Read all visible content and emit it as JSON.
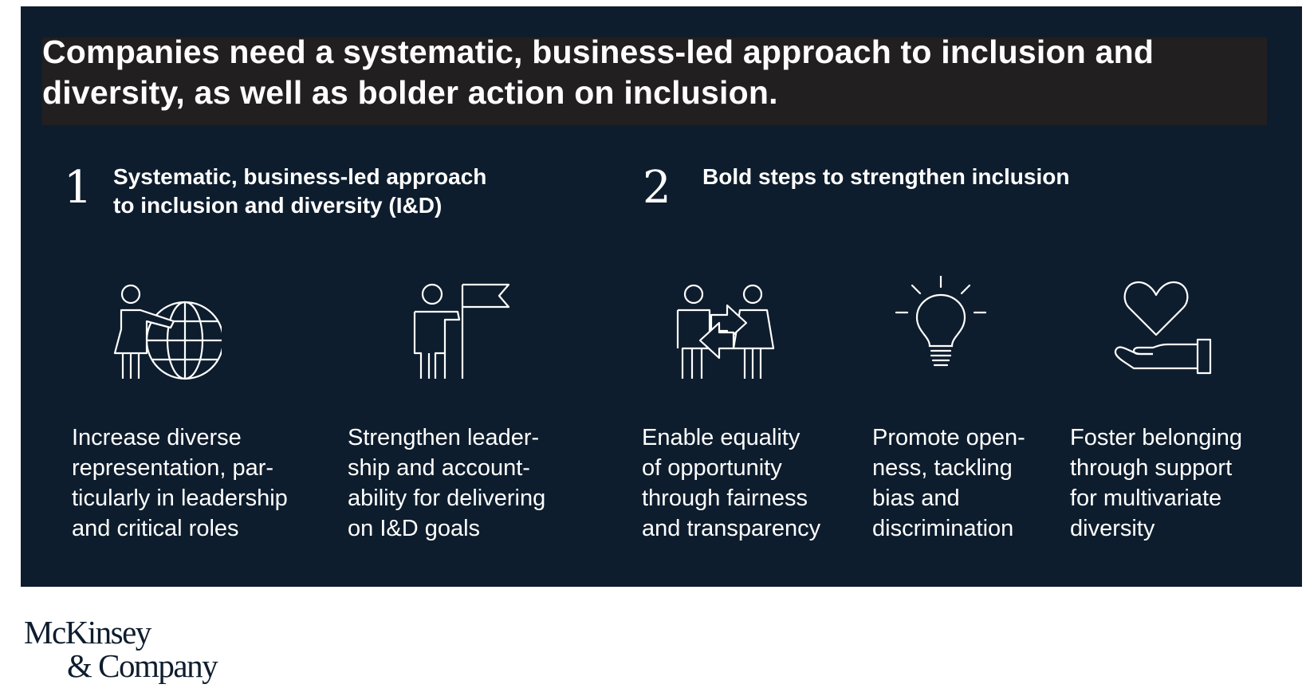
{
  "title": "Companies need a systematic, business-led approach to inclusion and diversity, as well as  bolder action on inclusion.",
  "sections": [
    {
      "number": "1",
      "heading": "Systematic, business-led approach\nto inclusion and diversity (I&D)"
    },
    {
      "number": "2",
      "heading": "Bold steps to strengthen inclusion"
    }
  ],
  "items": [
    {
      "icon": "person-globe-icon",
      "caption": "Increase diverse\nrepresentation, par-\nticularly in leadership\nand critical roles"
    },
    {
      "icon": "person-flag-icon",
      "caption": "Strengthen leader-\nship and account-\nability for delivering\non I&D goals"
    },
    {
      "icon": "people-exchange-icon",
      "caption": "Enable equality\nof opportunity\nthrough fairness\nand transparency"
    },
    {
      "icon": "lightbulb-icon",
      "caption": "Promote open-\nness, tackling\nbias and\ndiscrimination"
    },
    {
      "icon": "heart-hand-icon",
      "caption": "Foster belonging\nthrough support\nfor multivariate\ndiversity"
    }
  ],
  "logo": {
    "line1": "McKinsey",
    "line2": "& Company"
  },
  "colors": {
    "panel": "#0e1d2d",
    "title_band": "#221f20",
    "text": "#ffffff"
  }
}
